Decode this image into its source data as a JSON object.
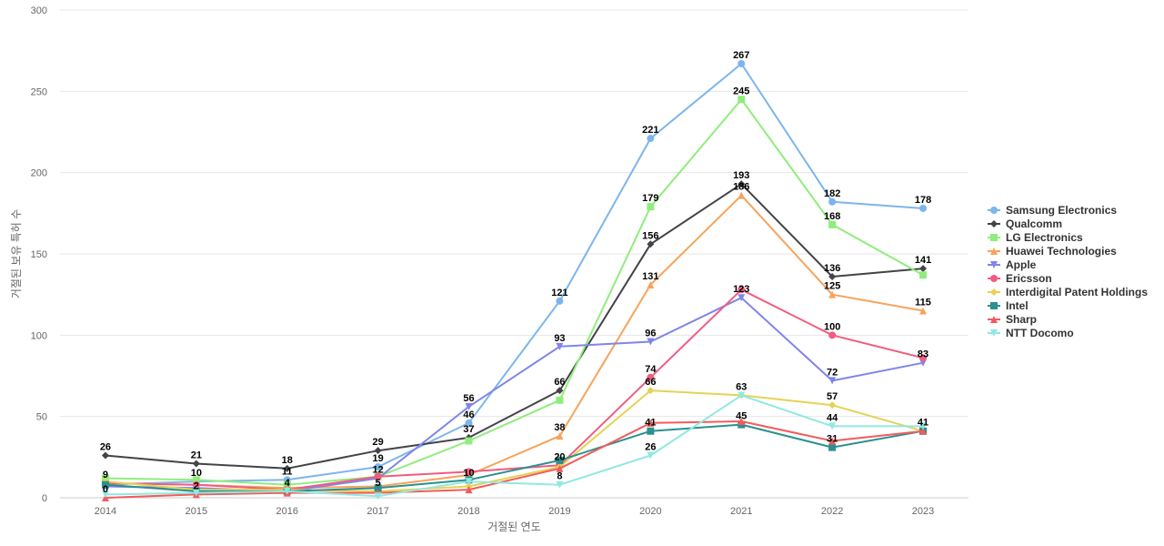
{
  "chart_data": {
    "type": "line",
    "title": "",
    "xlabel": "거절된 연도",
    "ylabel": "거절된 보유 특허 수",
    "ylim": [
      0,
      300
    ],
    "yticks": [
      0,
      50,
      100,
      150,
      200,
      250,
      300
    ],
    "grid": true,
    "legend_position": "right",
    "x": [
      "2014",
      "2015",
      "2016",
      "2017",
      "2018",
      "2019",
      "2020",
      "2021",
      "2022",
      "2023"
    ],
    "series": [
      {
        "name": "Samsung Electronics",
        "color": "#7cb5ec",
        "marker": "circle",
        "values": [
          8,
          10,
          11,
          19,
          46,
          121,
          221,
          267,
          182,
          178
        ]
      },
      {
        "name": "Qualcomm",
        "color": "#434348",
        "marker": "diamond",
        "values": [
          26,
          21,
          18,
          29,
          37,
          66,
          156,
          193,
          136,
          141
        ]
      },
      {
        "name": "LG Electronics",
        "color": "#90ed7d",
        "marker": "square",
        "values": [
          12,
          11,
          8,
          13,
          35,
          60,
          179,
          245,
          168,
          137
        ]
      },
      {
        "name": "Huawei Technologies",
        "color": "#f7a35c",
        "marker": "triangle",
        "values": [
          9,
          8,
          6,
          7,
          14,
          38,
          131,
          186,
          125,
          115
        ]
      },
      {
        "name": "Apple",
        "color": "#8085e9",
        "marker": "triangle-down",
        "values": [
          7,
          6,
          4,
          12,
          56,
          93,
          96,
          123,
          72,
          83
        ]
      },
      {
        "name": "Ericsson",
        "color": "#f15c80",
        "marker": "circle",
        "values": [
          9,
          8,
          5,
          13,
          16,
          20,
          74,
          128,
          100,
          86
        ]
      },
      {
        "name": "Interdigital Patent Holdings",
        "color": "#e4d354",
        "marker": "diamond",
        "values": [
          10,
          5,
          5,
          4,
          7,
          19,
          66,
          63,
          57,
          41
        ]
      },
      {
        "name": "Intel",
        "color": "#2b908f",
        "marker": "square",
        "values": [
          8,
          4,
          4,
          6,
          11,
          23,
          41,
          45,
          31,
          41
        ]
      },
      {
        "name": "Sharp",
        "color": "#f45b5b",
        "marker": "triangle",
        "values": [
          0,
          2,
          3,
          3,
          5,
          18,
          46,
          47,
          35,
          41
        ]
      },
      {
        "name": "NTT Docomo",
        "color": "#91e8e1",
        "marker": "triangle-down",
        "values": [
          2,
          3,
          4,
          1,
          10,
          8,
          26,
          63,
          44,
          44
        ]
      }
    ],
    "data_labels": [
      {
        "x": "2014",
        "value": "26"
      },
      {
        "x": "2014",
        "value": "9"
      },
      {
        "x": "2014",
        "value": "0"
      },
      {
        "x": "2015",
        "value": "21"
      },
      {
        "x": "2015",
        "value": "10"
      },
      {
        "x": "2015",
        "value": "2"
      },
      {
        "x": "2016",
        "value": "18"
      },
      {
        "x": "2016",
        "value": "11"
      },
      {
        "x": "2016",
        "value": "4"
      },
      {
        "x": "2017",
        "value": "29"
      },
      {
        "x": "2017",
        "value": "19"
      },
      {
        "x": "2017",
        "value": "12"
      },
      {
        "x": "2017",
        "value": "5"
      },
      {
        "x": "2018",
        "value": "56"
      },
      {
        "x": "2018",
        "value": "46"
      },
      {
        "x": "2018",
        "value": "37"
      },
      {
        "x": "2018",
        "value": "10"
      },
      {
        "x": "2019",
        "value": "121"
      },
      {
        "x": "2019",
        "value": "93"
      },
      {
        "x": "2019",
        "value": "66"
      },
      {
        "x": "2019",
        "value": "38"
      },
      {
        "x": "2019",
        "value": "20"
      },
      {
        "x": "2019",
        "value": "8"
      },
      {
        "x": "2020",
        "value": "221"
      },
      {
        "x": "2020",
        "value": "179"
      },
      {
        "x": "2020",
        "value": "156"
      },
      {
        "x": "2020",
        "value": "131"
      },
      {
        "x": "2020",
        "value": "96"
      },
      {
        "x": "2020",
        "value": "74"
      },
      {
        "x": "2020",
        "value": "66"
      },
      {
        "x": "2020",
        "value": "41"
      },
      {
        "x": "2020",
        "value": "26"
      },
      {
        "x": "2021",
        "value": "267"
      },
      {
        "x": "2021",
        "value": "245"
      },
      {
        "x": "2021",
        "value": "193"
      },
      {
        "x": "2021",
        "value": "186"
      },
      {
        "x": "2021",
        "value": "123"
      },
      {
        "x": "2021",
        "value": "63"
      },
      {
        "x": "2021",
        "value": "45"
      },
      {
        "x": "2022",
        "value": "182"
      },
      {
        "x": "2022",
        "value": "168"
      },
      {
        "x": "2022",
        "value": "136"
      },
      {
        "x": "2022",
        "value": "125"
      },
      {
        "x": "2022",
        "value": "100"
      },
      {
        "x": "2022",
        "value": "72"
      },
      {
        "x": "2022",
        "value": "57"
      },
      {
        "x": "2022",
        "value": "44"
      },
      {
        "x": "2022",
        "value": "31"
      },
      {
        "x": "2023",
        "value": "178"
      },
      {
        "x": "2023",
        "value": "141"
      },
      {
        "x": "2023",
        "value": "115"
      },
      {
        "x": "2023",
        "value": "83"
      },
      {
        "x": "2023",
        "value": "41"
      }
    ]
  }
}
